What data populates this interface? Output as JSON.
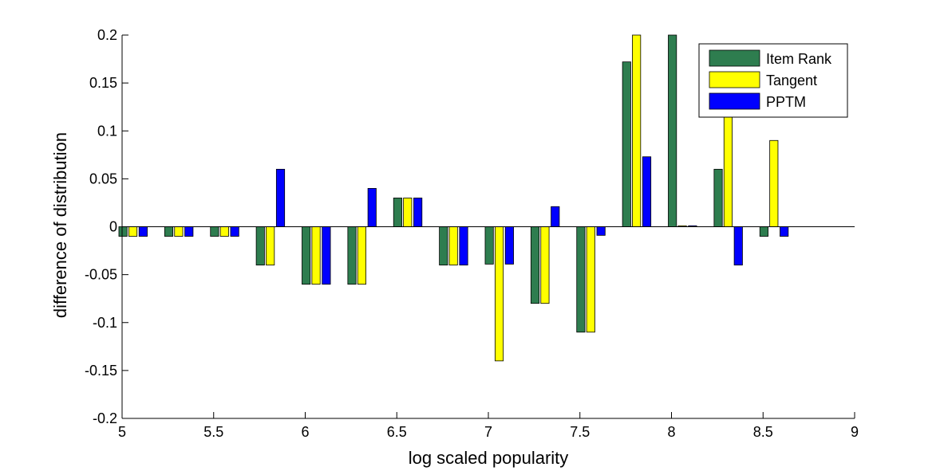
{
  "chart_data": {
    "type": "bar",
    "xlabel": "log scaled popularity",
    "ylabel": "difference of distribution",
    "xlim": [
      5,
      9
    ],
    "ylim": [
      -0.2,
      0.2
    ],
    "xticks": [
      "5",
      "5.5",
      "6",
      "6.5",
      "7",
      "7.5",
      "8",
      "8.5",
      "9"
    ],
    "yticks": [
      "-0.2",
      "-0.15",
      "-0.1",
      "-0.05",
      "0",
      "0.05",
      "0.1",
      "0.15",
      "0.2"
    ],
    "grid": false,
    "legend_position": "top-right",
    "categories": [
      5.125,
      5.375,
      5.625,
      5.875,
      6.125,
      6.375,
      6.625,
      6.875,
      7.125,
      7.375,
      7.625,
      7.875,
      8.125,
      8.375,
      8.625
    ],
    "series": [
      {
        "name": "Item Rank",
        "color": "#2e7d4f",
        "values": [
          -0.01,
          -0.01,
          -0.01,
          -0.04,
          -0.06,
          -0.06,
          0.03,
          -0.04,
          -0.039,
          -0.08,
          -0.11,
          0.172,
          0.2,
          0.06,
          -0.01
        ]
      },
      {
        "name": "Tangent",
        "color": "#ffff00",
        "values": [
          -0.01,
          -0.01,
          -0.01,
          -0.04,
          -0.06,
          -0.06,
          0.03,
          -0.04,
          -0.14,
          -0.08,
          -0.11,
          0.2,
          0.001,
          0.12,
          0.09
        ]
      },
      {
        "name": "PPTM",
        "color": "#0000ff",
        "values": [
          -0.01,
          -0.01,
          -0.01,
          0.06,
          -0.06,
          0.04,
          0.03,
          -0.04,
          -0.039,
          0.021,
          -0.009,
          0.073,
          0.001,
          -0.04,
          -0.01
        ]
      }
    ]
  }
}
